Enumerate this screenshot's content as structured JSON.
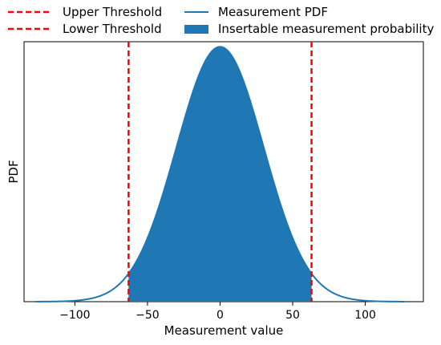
{
  "chart_data": {
    "type": "area",
    "xlabel": "Measurement value",
    "ylabel": "PDF",
    "xlim": [
      -135,
      140
    ],
    "ylim": [
      0,
      1.02
    ],
    "xticks": [
      -100,
      -50,
      0,
      50,
      100
    ],
    "xtick_labels": [
      "−100",
      "−50",
      "0",
      "50",
      "100"
    ],
    "yticks_visible": false,
    "distribution": {
      "shape": "gaussian",
      "mean": 0,
      "std": 30,
      "range": [
        -127,
        127
      ]
    },
    "thresholds": {
      "lower": -63,
      "upper": 63
    },
    "series": [
      {
        "name": "Upper Threshold",
        "kind": "vline",
        "x": 63,
        "color": "#ff0000",
        "style": "dashed"
      },
      {
        "name": "Lower Threshold",
        "kind": "vline",
        "x": -63,
        "color": "#ff0000",
        "style": "dashed"
      },
      {
        "name": "Measurement PDF",
        "kind": "line",
        "color": "#1f77b4"
      },
      {
        "name": "Insertable measurement probability",
        "kind": "fill",
        "x_range": [
          -63,
          63
        ],
        "color": "#1f77b4"
      }
    ],
    "legend": {
      "placement": "top",
      "columns": 2,
      "entries": [
        "Upper Threshold",
        "Lower Threshold",
        "Measurement PDF",
        "Insertable measurement probability"
      ]
    }
  }
}
